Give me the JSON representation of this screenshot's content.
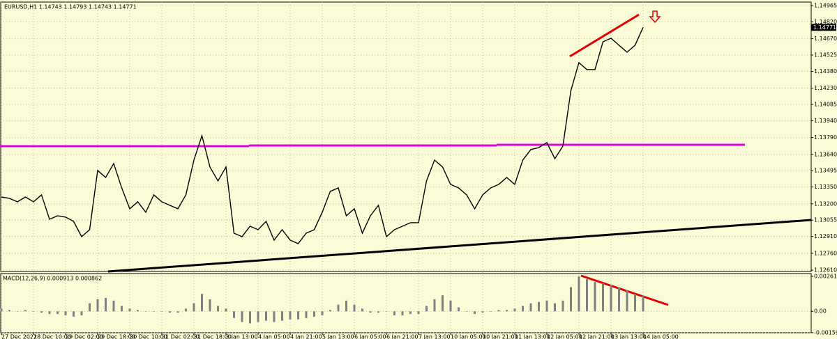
{
  "header": "EURUSD,H1  1.14743 1.14793 1.14743 1.14771",
  "chart_data": [
    {
      "type": "line",
      "color": "#000000",
      "grid": true,
      "last_price": 1.14771,
      "categories": [
        "27 Dec 2021",
        null,
        null,
        null,
        "28 Dec 10:00",
        null,
        null,
        null,
        "29 Dec 02:00",
        null,
        null,
        null,
        "29 Dec 18:00",
        null,
        null,
        null,
        "30 Dec 10:00",
        null,
        null,
        null,
        "31 Dec 02:00",
        null,
        null,
        null,
        "31 Dec 18:00",
        null,
        null,
        null,
        "3 Jan 13:00",
        null,
        null,
        null,
        "4 Jan 05:00",
        null,
        null,
        null,
        "4 Jan 21:00",
        null,
        null,
        null,
        "5 Jan 13:00",
        null,
        null,
        null,
        "6 Jan 05:00",
        null,
        null,
        null,
        "6 Jan 21:00",
        null,
        null,
        null,
        "7 Jan 13:00",
        null,
        null,
        null,
        "10 Jan 05:00",
        null,
        null,
        null,
        "10 Jan 21:00",
        null,
        null,
        null,
        "11 Jan 13:00",
        null,
        null,
        null,
        "12 Jan 05:00",
        null,
        null,
        null,
        "12 Jan 21:00",
        null,
        null,
        null,
        "13 Jan 13:00",
        null,
        null,
        null,
        "14 Jan 05:00"
      ],
      "values": [
        1.13261,
        1.13249,
        1.13218,
        1.13261,
        1.13218,
        1.1328,
        1.13063,
        1.13094,
        1.13082,
        1.13044,
        1.12908,
        1.1297,
        1.13497,
        1.13435,
        1.13559,
        1.13342,
        1.13156,
        1.13218,
        1.13125,
        1.1328,
        1.13218,
        1.13187,
        1.13156,
        1.1328,
        1.1359,
        1.13807,
        1.13528,
        1.13404,
        1.13528,
        1.12939,
        1.12908,
        1.13001,
        1.1297,
        1.13044,
        1.12877,
        1.1297,
        1.12877,
        1.12846,
        1.12939,
        1.1297,
        1.13125,
        1.13311,
        1.13342,
        1.13094,
        1.13156,
        1.12939,
        1.13094,
        1.13187,
        1.12908,
        1.1297,
        1.13001,
        1.13032,
        1.13032,
        1.13404,
        1.1359,
        1.13528,
        1.13373,
        1.13342,
        1.1328,
        1.13156,
        1.1328,
        1.13342,
        1.13373,
        1.13435,
        1.13373,
        1.1359,
        1.13683,
        1.13701,
        1.13745,
        1.13602,
        1.13714,
        1.14209,
        1.14457,
        1.14395,
        1.14395,
        1.14643,
        1.14674,
        1.14612,
        1.1455,
        1.14612,
        1.14771
      ],
      "ylim": [
        1.12598,
        1.14996
      ],
      "yticks": [
        1.14965,
        {
          "value": 1.1482,
          "label": "1.14820"
        },
        {
          "value": 1.1467,
          "label": "1.14670"
        },
        1.14525,
        {
          "value": 1.1438,
          "label": "1.14380"
        },
        {
          "value": 1.1423,
          "label": "1.14230"
        },
        1.14085,
        {
          "value": 1.1394,
          "label": "1.13940"
        },
        {
          "value": 1.1379,
          "label": "1.13790"
        },
        {
          "value": 1.1364,
          "label": "1.13640"
        },
        1.13495,
        {
          "value": 1.1335,
          "label": "1.13350"
        },
        {
          "value": 1.132,
          "label": "1.13200"
        },
        1.13055,
        {
          "value": 1.1291,
          "label": "1.12910"
        },
        {
          "value": 1.1276,
          "label": "1.12760"
        },
        {
          "value": 1.1261,
          "label": "1.12610"
        }
      ]
    },
    {
      "type": "bar",
      "title": "MACD(12,26,9) 0.000913 0.000862",
      "color": "#808080",
      "values": [
        0.0002,
        0.0001,
        0.0,
        0.0001,
        0.0,
        -0.0001,
        -0.0002,
        -0.0002,
        -0.0003,
        -0.0004,
        -0.0003,
        0.0006,
        0.0009,
        0.001,
        0.0008,
        0.0004,
        0.0002,
        0.0001,
        0.0,
        0.0,
        0.0,
        -0.0001,
        -0.0001,
        0.0002,
        0.0006,
        0.0013,
        0.0009,
        0.0004,
        0.0002,
        -0.0005,
        -0.0008,
        -0.0009,
        -0.0008,
        -0.0007,
        -0.0008,
        -0.0007,
        -0.0006,
        -0.0006,
        -0.0005,
        -0.0004,
        -0.0003,
        0.0001,
        0.0005,
        0.0008,
        0.0005,
        0.0002,
        -0.0001,
        -0.0001,
        0.0,
        -0.0003,
        -0.0003,
        -0.0002,
        -0.0002,
        0.0004,
        0.0009,
        0.0012,
        0.0008,
        0.0003,
        0.0,
        -0.0002,
        -0.0001,
        0.0,
        0.0001,
        0.0001,
        0.0002,
        0.0004,
        0.0006,
        0.0007,
        0.0008,
        0.0006,
        0.0008,
        0.0018,
        0.0026,
        0.0024,
        0.0022,
        0.0021,
        0.002,
        0.0018,
        0.0016,
        0.0013,
        0.0012
      ],
      "ylim": [
        -0.0016,
        0.00282
      ],
      "yticks": [
        0.002615,
        {
          "value": 0,
          "label": "0.00"
        },
        -0.001593
      ]
    }
  ]
}
